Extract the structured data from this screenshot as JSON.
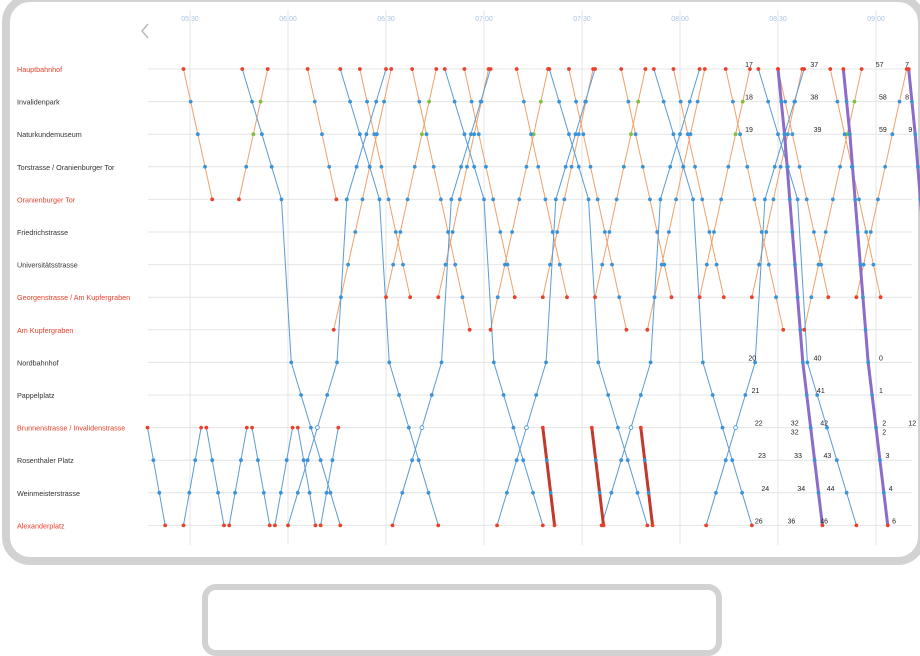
{
  "nav": {
    "back_icon": "chevron-left-icon"
  },
  "colors": {
    "grid": "#e4e4e4",
    "time_label": "#a9c4e4",
    "station_normal": "#333333",
    "station_highlight": "#e8412c",
    "line_blue": "#5b9bd5",
    "line_orange": "#f0a06a",
    "dot_blue": "#3a93d8",
    "dot_red": "#e8412c",
    "dot_green": "#7fbf3f",
    "bold_purple": "#8b6cc9",
    "bold_red": "#c0392b"
  },
  "chart_data": {
    "type": "line",
    "title": "",
    "x_axis": {
      "type": "time",
      "ticks": [
        "05:30",
        "06:00",
        "06:30",
        "07:00",
        "07:30",
        "08:00",
        "08:30",
        "09:00"
      ]
    },
    "stations": [
      {
        "name": "Hauptbahnhof",
        "highlight": true
      },
      {
        "name": "Invalidenpark",
        "highlight": false
      },
      {
        "name": "Naturkundemuseum",
        "highlight": false
      },
      {
        "name": "Torstrasse / Oranienburger Tor",
        "highlight": false
      },
      {
        "name": "Oranienburger Tor",
        "highlight": true
      },
      {
        "name": "Friedrichstrasse",
        "highlight": false
      },
      {
        "name": "Universitätsstrasse",
        "highlight": false
      },
      {
        "name": "Georgenstrasse / Am Kupfergraben",
        "highlight": true
      },
      {
        "name": "Am Kupfergraben",
        "highlight": true
      },
      {
        "name": "Nordbahnhof",
        "highlight": false
      },
      {
        "name": "Pappelplatz",
        "highlight": false
      },
      {
        "name": "Brunnenstrasse / Invalidenstrasse",
        "highlight": true
      },
      {
        "name": "Rosenthaler Platz",
        "highlight": false
      },
      {
        "name": "Weinmeisterstrasse",
        "highlight": false
      },
      {
        "name": "Alexanderplatz",
        "highlight": true
      }
    ],
    "labels": [
      {
        "text": "17",
        "time": "08:19",
        "station": 0
      },
      {
        "text": "18",
        "time": "08:19",
        "station": 1
      },
      {
        "text": "19",
        "time": "08:19",
        "station": 2
      },
      {
        "text": "20",
        "time": "08:20",
        "station": 9
      },
      {
        "text": "21",
        "time": "08:21",
        "station": 10
      },
      {
        "text": "22",
        "time": "08:22",
        "station": 11
      },
      {
        "text": "23",
        "time": "08:23",
        "station": 12
      },
      {
        "text": "24",
        "time": "08:24",
        "station": 13
      },
      {
        "text": "26",
        "time": "08:22",
        "station": 14
      },
      {
        "text": "37",
        "time": "08:39",
        "station": 0
      },
      {
        "text": "38",
        "time": "08:39",
        "station": 1
      },
      {
        "text": "39",
        "time": "08:40",
        "station": 2
      },
      {
        "text": "40",
        "time": "08:40",
        "station": 9
      },
      {
        "text": "41",
        "time": "08:41",
        "station": 10
      },
      {
        "text": "32",
        "time": "08:33",
        "station": 11
      },
      {
        "text": "32",
        "time": "08:33",
        "station": 11.1
      },
      {
        "text": "42",
        "time": "08:42",
        "station": 11
      },
      {
        "text": "33",
        "time": "08:34",
        "station": 12
      },
      {
        "text": "43",
        "time": "08:43",
        "station": 12
      },
      {
        "text": "34",
        "time": "08:35",
        "station": 13
      },
      {
        "text": "44",
        "time": "08:44",
        "station": 13
      },
      {
        "text": "36",
        "time": "08:32",
        "station": 14
      },
      {
        "text": "46",
        "time": "08:42",
        "station": 14
      },
      {
        "text": "57",
        "time": "08:59",
        "station": 0
      },
      {
        "text": "58",
        "time": "09:00",
        "station": 1
      },
      {
        "text": "59",
        "time": "09:00",
        "station": 2
      },
      {
        "text": "0",
        "time": "09:00",
        "station": 9
      },
      {
        "text": "1",
        "time": "09:00",
        "station": 10
      },
      {
        "text": "2",
        "time": "09:01",
        "station": 11
      },
      {
        "text": "2",
        "time": "09:01",
        "station": 11.1
      },
      {
        "text": "3",
        "time": "09:02",
        "station": 12
      },
      {
        "text": "4",
        "time": "09:03",
        "station": 13
      },
      {
        "text": "6",
        "time": "09:04",
        "station": 14
      },
      {
        "text": "7",
        "time": "09:08",
        "station": 0
      },
      {
        "text": "8",
        "time": "09:08",
        "station": 1
      },
      {
        "text": "9",
        "time": "09:09",
        "station": 2
      },
      {
        "text": "12",
        "time": "09:09",
        "station": 11
      }
    ]
  }
}
